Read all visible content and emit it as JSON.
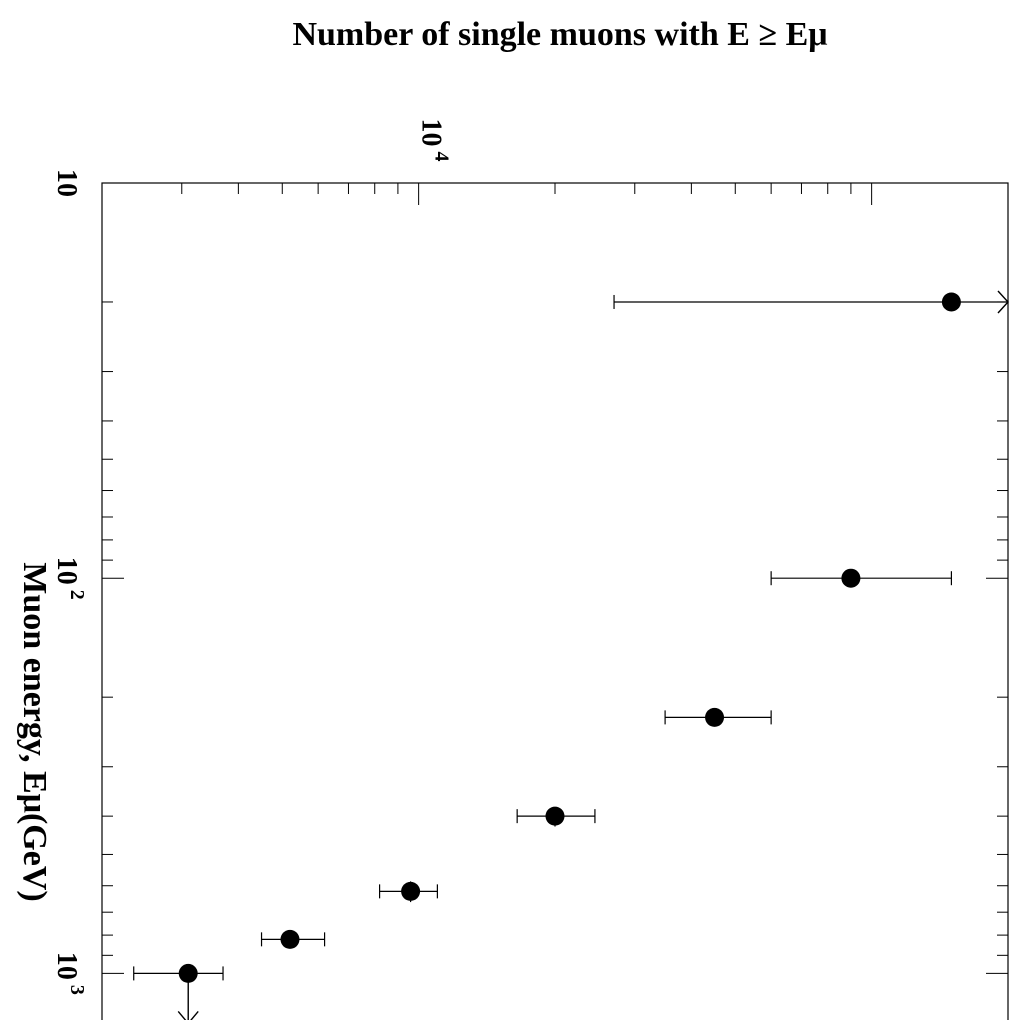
{
  "chart_data": {
    "type": "scatter",
    "title": "Number of single muons with E ≥ Eμ",
    "xlabel": "Muon energy, Eμ(GeV)",
    "ylabel": "",
    "x_scale": "log",
    "y_scale": "log",
    "xlim": [
      10,
      1500
    ],
    "ylim": [
      2000,
      200000
    ],
    "x_tick_labels": [
      {
        "value": 10,
        "base": "10",
        "exp": ""
      },
      {
        "value": 100,
        "base": "10",
        "exp": "2"
      },
      {
        "value": 1000,
        "base": "10",
        "exp": "3"
      }
    ],
    "y_tick_labels": [
      {
        "value": 10000,
        "base": "10",
        "exp": "4"
      }
    ],
    "series": [
      {
        "points": [
          {
            "x": 20,
            "y": 150000,
            "x_err": [
              20,
              20
            ],
            "y_err": [
              27000,
              150000
            ],
            "upper_arrow_at": 200000
          },
          {
            "x": 100,
            "y": 90000,
            "x_err": [
              100,
              100
            ],
            "y_err": [
              60000,
              150000
            ]
          },
          {
            "x": 225,
            "y": 45000,
            "x_err": [
              225,
              225
            ],
            "y_err": [
              35000,
              60000
            ]
          },
          {
            "x": 400,
            "y": 20000,
            "x_err": [
              380,
              425
            ],
            "y_err": [
              16500,
              24500
            ]
          },
          {
            "x": 620,
            "y": 9600,
            "x_err": [
              585,
              660
            ],
            "y_err": [
              8200,
              11000
            ]
          },
          {
            "x": 820,
            "y": 5200,
            "x_err": [
              780,
              865
            ],
            "y_err": [
              4500,
              6200
            ]
          },
          {
            "x": 1000,
            "y": 3100,
            "x_err": [
              1000,
              1000
            ],
            "y_err": [
              2350,
              3700
            ],
            "lower_limit": true
          }
        ]
      }
    ]
  }
}
